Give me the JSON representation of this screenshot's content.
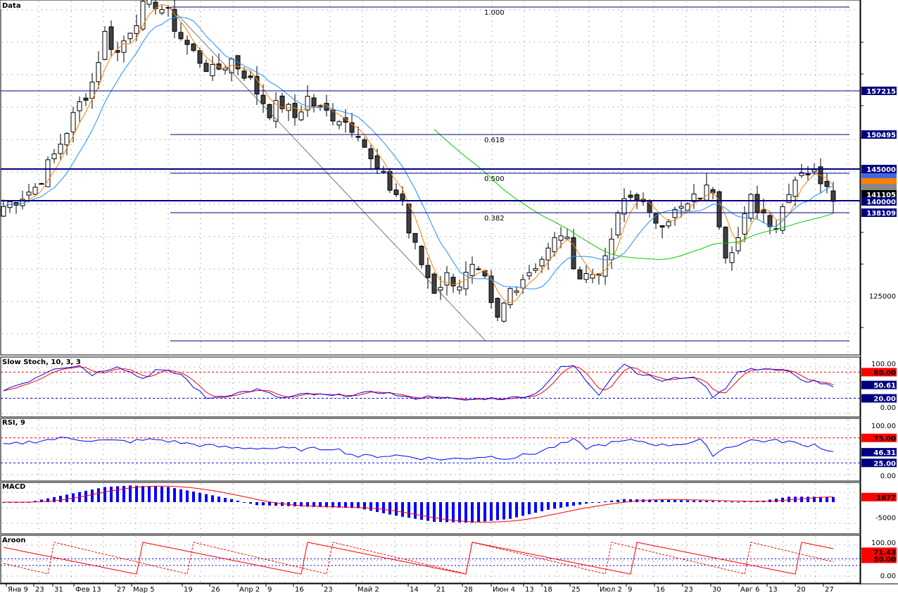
{
  "chart_data": {
    "type": "candlestick",
    "panels": [
      {
        "title": "Data",
        "y_ticks": [
          "125000"
        ],
        "price_tags": [
          "157215",
          "150495",
          "145000",
          "141105",
          "140000",
          "138109"
        ],
        "fib_levels": [
          "1.000",
          "0.618",
          "0.500",
          "0.382"
        ],
        "moving_averages": [
          {
            "color": "#ff8000"
          },
          {
            "color": "#1e90ff"
          },
          {
            "color": "#00cc00"
          }
        ]
      },
      {
        "title": "Slow Stoch, 10, 3, 3",
        "y_ticks": [
          "100.00",
          "80.00",
          "50.61",
          "20.00",
          "0.00"
        ],
        "levels": [
          80,
          20
        ],
        "current": "50.61"
      },
      {
        "title": "RSI, 9",
        "y_ticks": [
          "100.00",
          "75.00",
          "46.31",
          "25.00",
          "0.00"
        ],
        "levels": [
          75,
          25
        ],
        "current": "46.31"
      },
      {
        "title": "MACD",
        "y_ticks": [
          "1677",
          "-5000"
        ],
        "current": "1677"
      },
      {
        "title": "Aroon",
        "y_ticks": [
          "100.00",
          "71.43",
          "50.00",
          "0.00"
        ],
        "current": "71.43"
      }
    ],
    "x_labels": [
      "Янв 9",
      "23",
      "31",
      "Фев 13",
      "27",
      "Мар 5",
      "19",
      "26",
      "Апр 2",
      "9",
      "16",
      "23",
      "Май 2",
      "14",
      "21",
      "28",
      "Июн 4",
      "13",
      "18",
      "25",
      "Июл 2",
      "9",
      "16",
      "23",
      "30",
      "Авг 6",
      "13",
      "20",
      "27"
    ],
    "colors": {
      "up": "#ffffff",
      "down": "#404040",
      "ma_fast": "#ff8000",
      "ma_mid": "#1e90ff",
      "ma_slow": "#00cc00",
      "level_line": "#000080",
      "stoch_k": "#0000ff",
      "stoch_d": "#ff0000",
      "macd_hist": "#0000ff",
      "macd_signal": "#ff0000",
      "tag_red": "#ff0000",
      "tag_blue": "#000080",
      "tag_black": "#000000"
    }
  }
}
